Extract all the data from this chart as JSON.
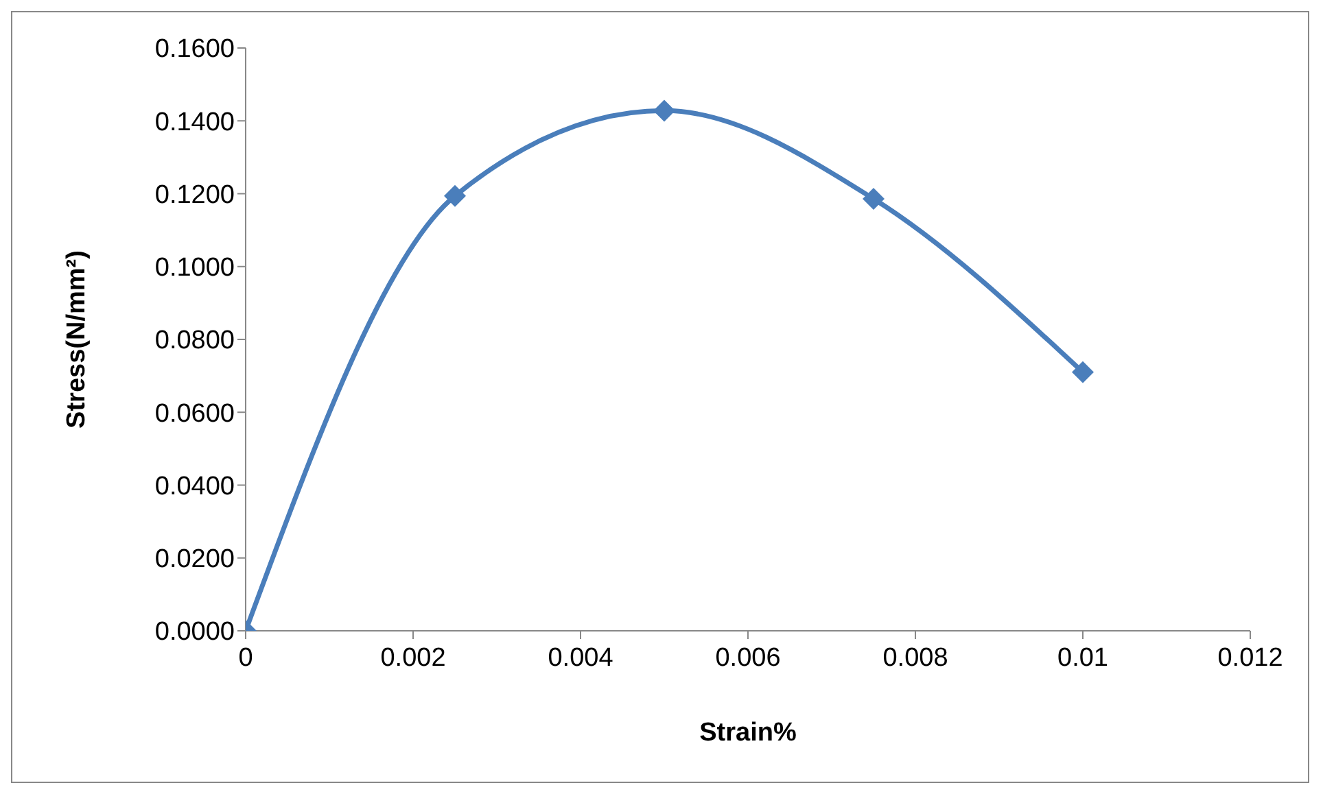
{
  "chart_data": {
    "type": "line",
    "xlabel": "Strain%",
    "ylabel": "Stress(N/mm²)",
    "x": [
      0,
      0.0025,
      0.005,
      0.0075,
      0.01
    ],
    "series": [
      {
        "color": "#4a7ebb",
        "values": [
          0,
          0.1194,
          0.1428,
          0.1186,
          0.071
        ]
      }
    ],
    "xlim": [
      0,
      0.012
    ],
    "xticks": [
      0,
      0.002,
      0.004,
      0.006,
      0.008,
      0.01,
      0.012
    ],
    "ylim": [
      0,
      0.16
    ],
    "yticks": [
      {
        "value": 0,
        "label": "0.0000"
      },
      {
        "value": 0.02,
        "label": "0.0200"
      },
      {
        "value": 0.04,
        "label": "0.0400"
      },
      {
        "value": 0.06,
        "label": "0.0600"
      },
      {
        "value": 0.08,
        "label": "0.0800"
      },
      {
        "value": 0.1,
        "label": "0.1000"
      },
      {
        "value": 0.12,
        "label": "0.1200"
      },
      {
        "value": 0.14,
        "label": "0.1400"
      },
      {
        "value": 0.16,
        "label": "0.1600"
      }
    ],
    "grid": false,
    "legend": false,
    "marker": "diamond",
    "line_style": "solid"
  }
}
